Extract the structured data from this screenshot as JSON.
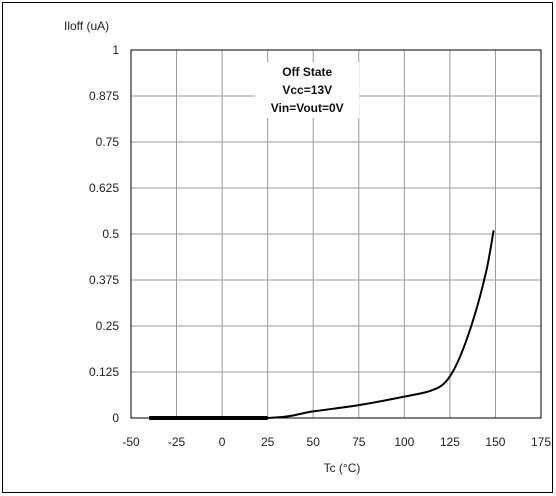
{
  "chart_data": {
    "type": "line",
    "ylabel": "Iloff (uA)",
    "xlabel": "Tc (°C)",
    "xlim": [
      -50,
      175
    ],
    "ylim": [
      0,
      1
    ],
    "x_ticks": [
      "-50",
      "-25",
      "0",
      "25",
      "50",
      "75",
      "100",
      "125",
      "150",
      "175"
    ],
    "y_ticks": [
      "0",
      "0.125",
      "0.25",
      "0.375",
      "0.5",
      "0.625",
      "0.75",
      "0.875",
      "1"
    ],
    "grid": true,
    "annotation": [
      "Off State",
      "Vcc=13V",
      "Vin=Vout=0V"
    ],
    "series": [
      {
        "x": [
          -40,
          25,
          50,
          75,
          100,
          115,
          123,
          130,
          138,
          145,
          149
        ],
        "y": [
          0,
          0,
          0.018,
          0.035,
          0.058,
          0.075,
          0.1,
          0.16,
          0.27,
          0.4,
          0.51
        ]
      }
    ]
  },
  "colors": {
    "line": "#000000",
    "grid": "#999999",
    "frame": "#000000"
  }
}
